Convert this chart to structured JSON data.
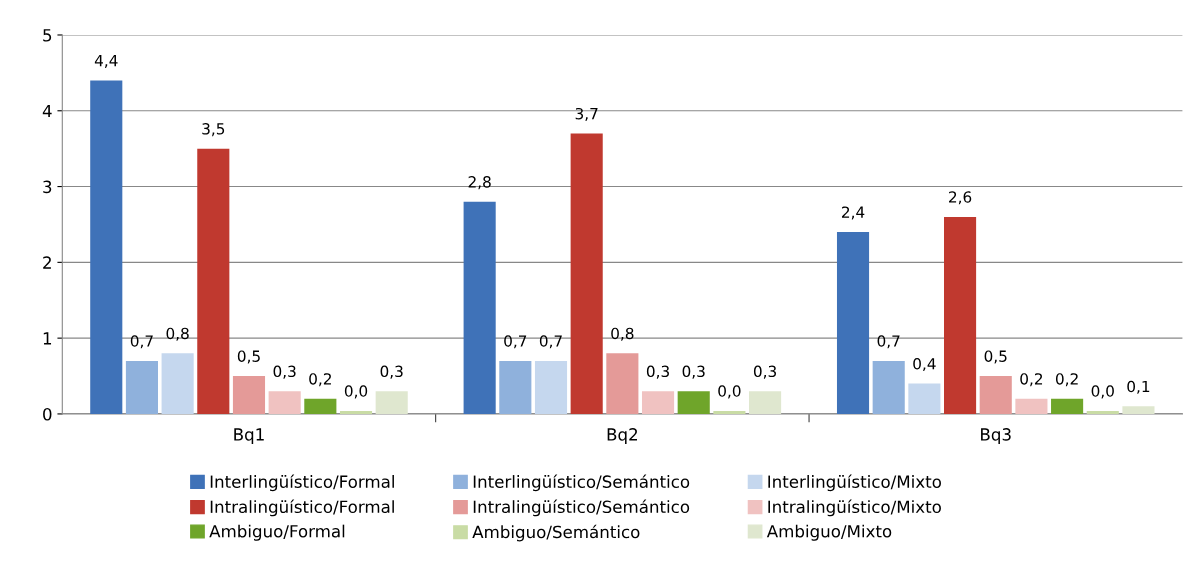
{
  "chart_data": {
    "type": "bar",
    "categories": [
      "Bq1",
      "Bq2",
      "Bq3"
    ],
    "series": [
      {
        "name": "Interlingüístico/Formal",
        "color": "#3f72b8",
        "values": [
          4.4,
          2.8,
          2.4
        ],
        "value_labels": [
          "4,4",
          "2,8",
          "2,4"
        ]
      },
      {
        "name": "Interlingüístico/Semántico",
        "color": "#8fb1dc",
        "values": [
          0.7,
          0.7,
          0.7
        ],
        "value_labels": [
          "0,7",
          "0,7",
          "0,7"
        ]
      },
      {
        "name": "Interlingüístico/Mixto",
        "color": "#c5d7ee",
        "values": [
          0.8,
          0.7,
          0.4
        ],
        "value_labels": [
          "0,8",
          "0,7",
          "0,4"
        ]
      },
      {
        "name": "Intralingüístico/Formal",
        "color": "#c0392f",
        "values": [
          3.5,
          3.7,
          2.6
        ],
        "value_labels": [
          "3,5",
          "3,7",
          "2,6"
        ]
      },
      {
        "name": "Intralingüístico/Semántico",
        "color": "#e49a98",
        "values": [
          0.5,
          0.8,
          0.5
        ],
        "value_labels": [
          "0,5",
          "0,8",
          "0,5"
        ]
      },
      {
        "name": "Intralingüístico/Mixto",
        "color": "#f0c2c1",
        "values": [
          0.3,
          0.3,
          0.2
        ],
        "value_labels": [
          "0,3",
          "0,3",
          "0,2"
        ]
      },
      {
        "name": "Ambiguo/Formal",
        "color": "#6fa52a",
        "values": [
          0.2,
          0.3,
          0.2
        ],
        "value_labels": [
          "0,2",
          "0,3",
          "0,2"
        ]
      },
      {
        "name": "Ambiguo/Semántico",
        "color": "#c9dca5",
        "values": [
          0.04,
          0.04,
          0.04
        ],
        "value_labels": [
          "0,0",
          "0,0",
          "0,0"
        ]
      },
      {
        "name": "Ambiguo/Mixto",
        "color": "#dfe7cf",
        "values": [
          0.3,
          0.3,
          0.1
        ],
        "value_labels": [
          "0,3",
          "0,3",
          "0,1"
        ]
      }
    ],
    "ylim": [
      0,
      5
    ],
    "yticks": [
      0,
      1,
      2,
      3,
      4,
      5
    ],
    "grid": "y",
    "legend": "bottom"
  }
}
